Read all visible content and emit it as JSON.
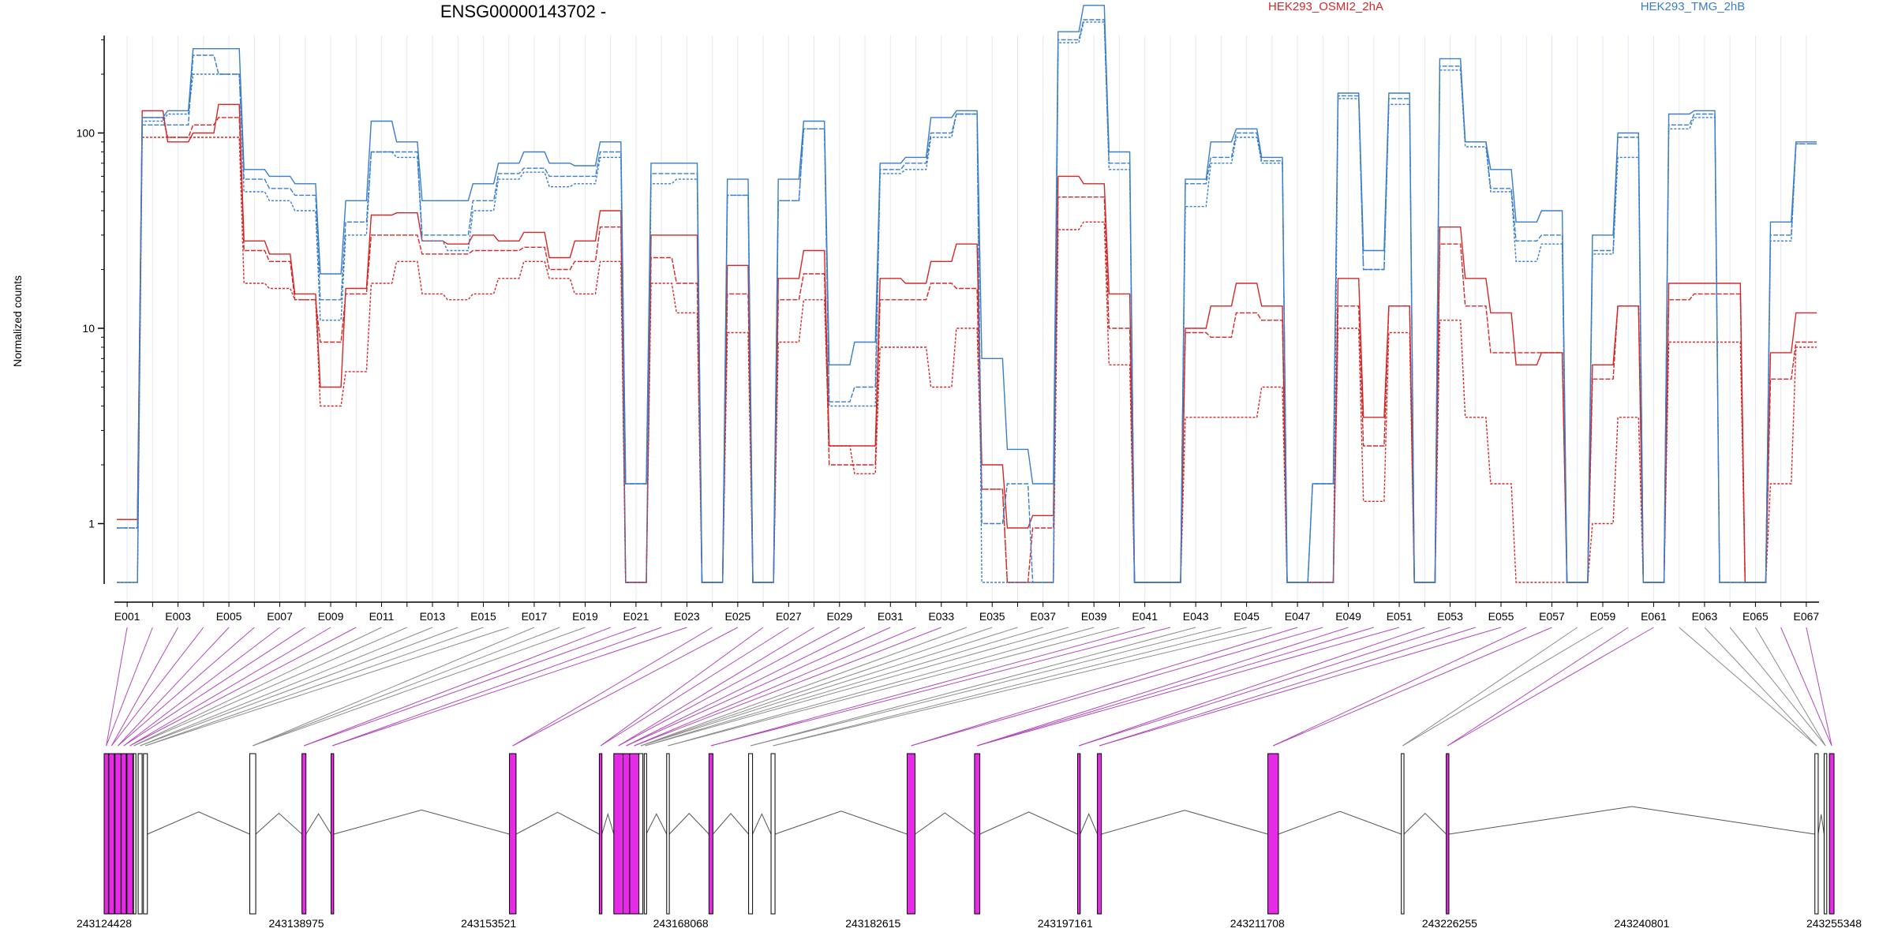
{
  "chart_data": {
    "type": "line",
    "title": "ENSG00000143702 -",
    "ylabel": "Normalized counts",
    "y_scale": "log",
    "y_ticks": [
      1,
      10,
      100
    ],
    "legend": [
      {
        "name": "HEK293_OSMI2_2hA",
        "color": "#d62728"
      },
      {
        "name": "HEK293_TMG_2hB",
        "color": "#3a7dc9"
      }
    ],
    "legend_placement": "top-right",
    "categories": [
      "E001",
      "E002",
      "E003",
      "E004",
      "E005",
      "E006",
      "E007",
      "E008",
      "E009",
      "E010",
      "E011",
      "E012",
      "E013",
      "E014",
      "E015",
      "E016",
      "E017",
      "E018",
      "E019",
      "E020",
      "E021",
      "E022",
      "E023",
      "E024",
      "E025",
      "E026",
      "E027",
      "E028",
      "E029",
      "E030",
      "E031",
      "E032",
      "E033",
      "E034",
      "E035",
      "E036",
      "E037",
      "E038",
      "E039",
      "E040",
      "E041",
      "E042",
      "E043",
      "E044",
      "E045",
      "E046",
      "E047",
      "E048",
      "E049",
      "E050",
      "E051",
      "E052",
      "E053",
      "E054",
      "E055",
      "E056",
      "E057",
      "E058",
      "E059",
      "E060",
      "E061",
      "E062",
      "E063",
      "E064",
      "E065",
      "E066",
      "E067"
    ],
    "x_tick_labels": [
      "E001",
      "E003",
      "E005",
      "E007",
      "E009",
      "E011",
      "E013",
      "E015",
      "E017",
      "E019",
      "E021",
      "E023",
      "E025",
      "E027",
      "E029",
      "E031",
      "E033",
      "E035",
      "E037",
      "E039",
      "E041",
      "E043",
      "E045",
      "E047",
      "E049",
      "E051",
      "E053",
      "E055",
      "E057",
      "E059",
      "E061",
      "E063",
      "E065",
      "E067"
    ],
    "series": [
      {
        "group": "HEK293_OSMI2_2hA",
        "color": "#d62728",
        "values": [
          1.05,
          130,
          90,
          100,
          140,
          28,
          24,
          15,
          5,
          16,
          38,
          39,
          28,
          27,
          30,
          28,
          31,
          23,
          28,
          40,
          0.5,
          30,
          30,
          0.5,
          21,
          0.5,
          18,
          25,
          2.5,
          2.5,
          18,
          17,
          22,
          27,
          2.0,
          0.95,
          1.1,
          60,
          55,
          15,
          0.5,
          0.5,
          10,
          13,
          17,
          13,
          0.5,
          0.5,
          18,
          3.5,
          13,
          0.5,
          33,
          18,
          12,
          6.5,
          7.5,
          0.5,
          6.5,
          13,
          0.5,
          17,
          17,
          17,
          0.5,
          7.5,
          12
        ]
      },
      {
        "group": "HEK293_OSMI2_2hA",
        "color": "#d62728",
        "values": [
          1.05,
          120,
          95,
          110,
          120,
          25,
          22,
          14,
          8.5,
          15,
          30,
          30,
          24,
          24,
          25,
          25,
          26,
          20,
          22,
          33,
          0.5,
          23,
          17,
          0.5,
          15,
          0.5,
          14,
          19,
          2.0,
          2.0,
          14,
          14,
          17,
          16,
          1.5,
          0.5,
          0.95,
          47,
          47,
          10,
          0.5,
          0.5,
          9.5,
          9,
          12,
          11,
          0.5,
          0.5,
          13,
          2.5,
          13,
          0.5,
          27,
          13,
          7.5,
          7.5,
          7.5,
          0.5,
          5.5,
          13,
          0.5,
          14,
          15,
          15,
          0.5,
          5.5,
          8.5
        ]
      },
      {
        "group": "HEK293_OSMI2_2hA",
        "color": "#d62728",
        "values": [
          0.5,
          95,
          95,
          95,
          95,
          17,
          16,
          14,
          4,
          6,
          17,
          22,
          15,
          14,
          15,
          18,
          22,
          18,
          15,
          22,
          0.5,
          17,
          12,
          0.5,
          9.5,
          0.5,
          8.5,
          14,
          2.5,
          1.8,
          8,
          8,
          5,
          10,
          1.5,
          0.5,
          0.5,
          32,
          35,
          6.5,
          0.5,
          0.5,
          3.5,
          3.5,
          3.5,
          5,
          0.5,
          0.5,
          10,
          1.3,
          9.5,
          0.5,
          11,
          3.5,
          1.6,
          0.5,
          0.5,
          0.5,
          1.0,
          3.5,
          0.5,
          8.5,
          8.5,
          8.5,
          0.5,
          1.6,
          8
        ]
      },
      {
        "group": "HEK293_TMG_2hB",
        "color": "#3a7dc9",
        "values": [
          0.5,
          120,
          130,
          270,
          270,
          65,
          60,
          55,
          19,
          45,
          115,
          90,
          45,
          45,
          55,
          70,
          80,
          70,
          68,
          90,
          1.6,
          70,
          70,
          0.5,
          58,
          0.5,
          58,
          115,
          6.5,
          8.5,
          70,
          75,
          120,
          130,
          7,
          2.4,
          1.6,
          330,
          450,
          80,
          0.5,
          0.5,
          58,
          90,
          105,
          75,
          0.5,
          1.6,
          160,
          25,
          160,
          0.5,
          240,
          90,
          65,
          35,
          40,
          0.5,
          30,
          100,
          0.5,
          125,
          130,
          0.5,
          0.5,
          35,
          90
        ]
      },
      {
        "group": "HEK293_TMG_2hB",
        "color": "#3a7dc9",
        "values": [
          0.95,
          110,
          110,
          250,
          200,
          58,
          52,
          48,
          14,
          35,
          80,
          80,
          30,
          30,
          45,
          62,
          66,
          60,
          60,
          80,
          1.6,
          62,
          62,
          0.5,
          48,
          0.5,
          45,
          105,
          4.2,
          5,
          65,
          70,
          100,
          125,
          1.0,
          1.6,
          0.5,
          300,
          380,
          70,
          0.5,
          0.5,
          55,
          75,
          100,
          72,
          0.5,
          1.6,
          155,
          20,
          150,
          0.5,
          220,
          90,
          52,
          28,
          30,
          0.5,
          25,
          95,
          0.5,
          110,
          125,
          0.5,
          0.5,
          30,
          88
        ]
      },
      {
        "group": "HEK293_TMG_2hB",
        "color": "#3a7dc9",
        "values": [
          0.95,
          115,
          125,
          200,
          200,
          50,
          45,
          40,
          11,
          30,
          80,
          75,
          28,
          25,
          40,
          58,
          63,
          53,
          55,
          75,
          0.5,
          55,
          58,
          0.5,
          48,
          0.5,
          45,
          105,
          4,
          4,
          62,
          65,
          95,
          125,
          0.5,
          0.5,
          0.5,
          290,
          370,
          65,
          0.5,
          0.5,
          42,
          70,
          95,
          70,
          0.5,
          0.5,
          150,
          20,
          140,
          0.5,
          210,
          85,
          50,
          22,
          27,
          0.5,
          24,
          75,
          0.5,
          105,
          120,
          0.5,
          0.5,
          28,
          88
        ]
      }
    ],
    "gene_track": {
      "coordinate_labels": [
        "243124428",
        "243138975",
        "243153521",
        "243168068",
        "243182615",
        "243197161",
        "243211708",
        "243226255",
        "243240801",
        "243255348"
      ],
      "coordinate_range": [
        243124428,
        243255348
      ],
      "highlight_color": "#e62be6",
      "exons": [
        {
          "start": 243124428,
          "end": 243124750,
          "highlight": true
        },
        {
          "start": 243124780,
          "end": 243125200,
          "highlight": true
        },
        {
          "start": 243125250,
          "end": 243125700,
          "highlight": true
        },
        {
          "start": 243125720,
          "end": 243126100,
          "highlight": true
        },
        {
          "start": 243126150,
          "end": 243126600,
          "highlight": true
        },
        {
          "start": 243126650,
          "end": 243126700,
          "highlight": false
        },
        {
          "start": 243127000,
          "end": 243127300,
          "highlight": false
        },
        {
          "start": 243127400,
          "end": 243127700,
          "highlight": false
        },
        {
          "start": 243135450,
          "end": 243135900,
          "highlight": false
        },
        {
          "start": 243139400,
          "end": 243139700,
          "highlight": true
        },
        {
          "start": 243141600,
          "end": 243141800,
          "highlight": true
        },
        {
          "start": 243155100,
          "end": 243155600,
          "highlight": true
        },
        {
          "start": 243161900,
          "end": 243162100,
          "highlight": true
        },
        {
          "start": 243163000,
          "end": 243163700,
          "highlight": true
        },
        {
          "start": 243163700,
          "end": 243164200,
          "highlight": true
        },
        {
          "start": 243164200,
          "end": 243164900,
          "highlight": true
        },
        {
          "start": 243164900,
          "end": 243165200,
          "highlight": false
        },
        {
          "start": 243165300,
          "end": 243165450,
          "highlight": false
        },
        {
          "start": 243167000,
          "end": 243167200,
          "highlight": false
        },
        {
          "start": 243170200,
          "end": 243170500,
          "highlight": true
        },
        {
          "start": 243173200,
          "end": 243173500,
          "highlight": false
        },
        {
          "start": 243174900,
          "end": 243175200,
          "highlight": false
        },
        {
          "start": 243185200,
          "end": 243185800,
          "highlight": true
        },
        {
          "start": 243190300,
          "end": 243190700,
          "highlight": true
        },
        {
          "start": 243198100,
          "end": 243198300,
          "highlight": true
        },
        {
          "start": 243199600,
          "end": 243199900,
          "highlight": true
        },
        {
          "start": 243212500,
          "end": 243213300,
          "highlight": true
        },
        {
          "start": 243222600,
          "end": 243222800,
          "highlight": false
        },
        {
          "start": 243226000,
          "end": 243226200,
          "highlight": true
        },
        {
          "start": 243253900,
          "end": 243254150,
          "highlight": false
        },
        {
          "start": 243254600,
          "end": 243254800,
          "highlight": false
        },
        {
          "start": 243255000,
          "end": 243255348,
          "highlight": true
        }
      ]
    }
  }
}
